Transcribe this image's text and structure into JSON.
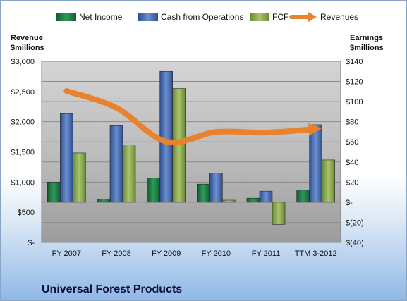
{
  "chart_data": {
    "type": "bar",
    "title": "Universal Forest Products",
    "categories": [
      "FY 2007",
      "FY 2008",
      "FY 2009",
      "FY 2010",
      "FY 2011",
      "TTM 3-2012"
    ],
    "left_axis": {
      "label_line1": "Revenue",
      "label_line2": "$millions",
      "ylim": [
        0,
        3000
      ],
      "ticks": [
        0,
        500,
        1000,
        1500,
        2000,
        2500,
        3000
      ],
      "tick_labels": [
        "$-",
        "$500",
        "$1,000",
        "$1,500",
        "$2,000",
        "$2,500",
        "$3,000"
      ]
    },
    "right_axis": {
      "label_line1": "Earnings",
      "label_line2": "$millions",
      "ylim": [
        -40,
        140
      ],
      "ticks": [
        -40,
        -20,
        0,
        20,
        40,
        60,
        80,
        100,
        120,
        140
      ],
      "tick_labels": [
        "$(40)",
        "$(20)",
        "$-",
        "$20",
        "$40",
        "$60",
        "$80",
        "$100",
        "$120",
        "$140"
      ]
    },
    "series": [
      {
        "name": "Net Income",
        "type": "bar",
        "axis": "right",
        "color": "#1e7a45",
        "values": [
          20,
          3,
          24,
          18,
          4,
          12
        ]
      },
      {
        "name": "Cash from Operations",
        "type": "bar",
        "axis": "right",
        "color": "#4a6eb0",
        "values": [
          88,
          76,
          130,
          29,
          11,
          77
        ]
      },
      {
        "name": "FCF",
        "type": "bar",
        "axis": "right",
        "color": "#8aa84e",
        "values": [
          49,
          57,
          113,
          2,
          -22,
          42
        ]
      },
      {
        "name": "Revenues",
        "type": "line",
        "axis": "left",
        "color": "#e8822d",
        "values": [
          2510,
          2230,
          1670,
          1830,
          1820,
          1880
        ]
      }
    ],
    "legend_position": "top",
    "grid": true
  }
}
